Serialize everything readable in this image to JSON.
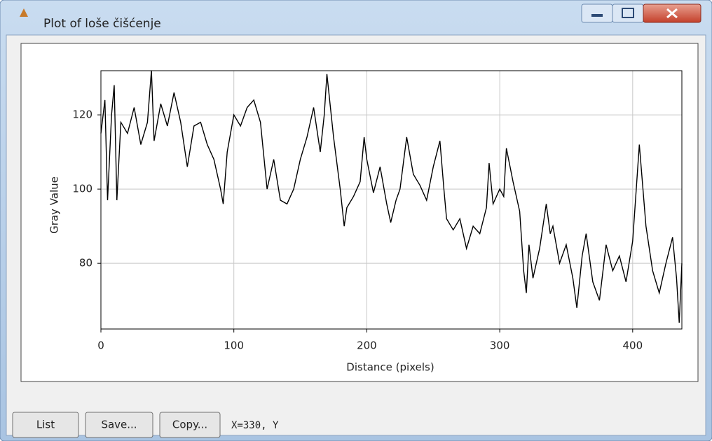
{
  "window": {
    "title": "Plot of loše čišćenje",
    "buttons": [
      "List",
      "Save...",
      "Copy..."
    ],
    "status": "X=330, Y"
  },
  "chart_data": {
    "type": "line",
    "x_label": "Distance (pixels)",
    "y_label": "Gray Value",
    "x": [
      0,
      3,
      5,
      8,
      10,
      12,
      15,
      20,
      25,
      30,
      35,
      38,
      40,
      45,
      50,
      55,
      60,
      65,
      70,
      75,
      80,
      85,
      90,
      92,
      95,
      100,
      105,
      110,
      115,
      120,
      125,
      130,
      135,
      140,
      145,
      150,
      155,
      160,
      165,
      168,
      170,
      175,
      180,
      183,
      185,
      190,
      195,
      198,
      200,
      205,
      210,
      215,
      218,
      222,
      225,
      230,
      235,
      240,
      245,
      250,
      255,
      258,
      260,
      265,
      270,
      275,
      280,
      285,
      290,
      292,
      295,
      300,
      303,
      305,
      310,
      315,
      318,
      320,
      322,
      325,
      330,
      335,
      338,
      340,
      345,
      350,
      355,
      358,
      362,
      365,
      370,
      375,
      380,
      385,
      390,
      395,
      400,
      405,
      410,
      415,
      420,
      425,
      430,
      433,
      435,
      437
    ],
    "values": [
      115,
      124,
      97,
      120,
      128,
      97,
      118,
      115,
      122,
      112,
      118,
      132,
      113,
      123,
      117,
      126,
      118,
      106,
      117,
      118,
      112,
      108,
      100,
      96,
      110,
      120,
      117,
      122,
      124,
      118,
      100,
      108,
      97,
      96,
      100,
      108,
      114,
      122,
      110,
      120,
      131,
      114,
      100,
      90,
      95,
      98,
      102,
      114,
      108,
      99,
      106,
      96,
      91,
      97,
      100,
      114,
      104,
      101,
      97,
      106,
      113,
      100,
      92,
      89,
      92,
      84,
      90,
      88,
      95,
      107,
      96,
      100,
      98,
      111,
      102,
      94,
      78,
      72,
      85,
      76,
      84,
      96,
      88,
      90,
      80,
      85,
      76,
      68,
      82,
      88,
      75,
      70,
      85,
      78,
      82,
      75,
      86,
      112,
      90,
      78,
      72,
      80,
      87,
      76,
      64,
      80
    ],
    "color": "#000000",
    "xlim": [
      0,
      437
    ],
    "ylim": [
      62.3,
      131.9
    ],
    "xticks": [
      0,
      100,
      200,
      300,
      400
    ],
    "yticks": [
      80,
      100,
      120
    ],
    "grid": true
  }
}
